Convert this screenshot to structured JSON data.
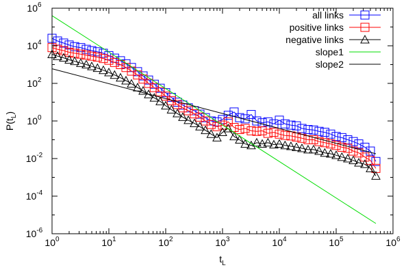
{
  "chart_data": {
    "type": "scatter",
    "title": "",
    "xlabel": {
      "base": "t",
      "sub": "L"
    },
    "ylabel": {
      "base": "P(t",
      "sub": "L",
      "tail": ")"
    },
    "x_scale": "log",
    "y_scale": "log",
    "xlim": [
      1,
      1000000
    ],
    "ylim": [
      1e-06,
      1000000
    ],
    "x_ticks": [
      {
        "base": "10",
        "exp": "0",
        "value": 1
      },
      {
        "base": "10",
        "exp": "1",
        "value": 10
      },
      {
        "base": "10",
        "exp": "2",
        "value": 100
      },
      {
        "base": "10",
        "exp": "3",
        "value": 1000
      },
      {
        "base": "10",
        "exp": "4",
        "value": 10000
      },
      {
        "base": "10",
        "exp": "5",
        "value": 100000
      },
      {
        "base": "10",
        "exp": "6",
        "value": 1000000
      }
    ],
    "y_ticks": [
      {
        "base": "10",
        "exp": "-6",
        "value": 1e-06
      },
      {
        "base": "10",
        "exp": "-4",
        "value": 0.0001
      },
      {
        "base": "10",
        "exp": "-2",
        "value": 0.01
      },
      {
        "base": "10",
        "exp": "0",
        "value": 1
      },
      {
        "base": "10",
        "exp": "2",
        "value": 100
      },
      {
        "base": "10",
        "exp": "4",
        "value": 10000
      },
      {
        "base": "10",
        "exp": "6",
        "value": 1000000
      }
    ],
    "legend_position": "top-right",
    "grid": false,
    "series": [
      {
        "name": "all links",
        "marker": "square",
        "color": "#0000ff",
        "points": [
          [
            1,
            25000
          ],
          [
            1.25,
            18000
          ],
          [
            1.6,
            14000
          ],
          [
            2,
            11000
          ],
          [
            2.5,
            9000
          ],
          [
            3.2,
            8000
          ],
          [
            4,
            6500
          ],
          [
            5,
            5500
          ],
          [
            6.3,
            4800
          ],
          [
            8,
            4000
          ],
          [
            10,
            3000
          ],
          [
            12.6,
            2200
          ],
          [
            16,
            1600
          ],
          [
            20,
            1100
          ],
          [
            25,
            700
          ],
          [
            32,
            420
          ],
          [
            40,
            250
          ],
          [
            50,
            150
          ],
          [
            63,
            90
          ],
          [
            80,
            55
          ],
          [
            100,
            32
          ],
          [
            126,
            18
          ],
          [
            160,
            10
          ],
          [
            200,
            7
          ],
          [
            250,
            5
          ],
          [
            320,
            3.5
          ],
          [
            400,
            2.3
          ],
          [
            500,
            1.5
          ],
          [
            630,
            1.0
          ],
          [
            800,
            0.9
          ],
          [
            1000,
            1.2
          ],
          [
            1260,
            2.0
          ],
          [
            1600,
            3.0
          ],
          [
            2000,
            1.5
          ],
          [
            2500,
            1.3
          ],
          [
            3200,
            2.2
          ],
          [
            4000,
            1.0
          ],
          [
            5000,
            0.8
          ],
          [
            6300,
            0.9
          ],
          [
            8000,
            0.7
          ],
          [
            10000,
            1.1
          ],
          [
            12600,
            0.7
          ],
          [
            16000,
            0.6
          ],
          [
            20000,
            0.55
          ],
          [
            25000,
            0.4
          ],
          [
            32000,
            0.35
          ],
          [
            40000,
            0.33
          ],
          [
            50000,
            0.28
          ],
          [
            63000,
            0.25
          ],
          [
            80000,
            0.2
          ],
          [
            100000,
            0.15
          ],
          [
            126000,
            0.13
          ],
          [
            160000,
            0.1
          ],
          [
            200000,
            0.08
          ],
          [
            250000,
            0.06
          ],
          [
            320000,
            0.04
          ],
          [
            400000,
            0.025
          ],
          [
            500000,
            0.007
          ]
        ]
      },
      {
        "name": "positive links",
        "marker": "square",
        "color": "#ff0000",
        "points": [
          [
            1,
            8000
          ],
          [
            1.25,
            6500
          ],
          [
            1.6,
            5500
          ],
          [
            2,
            4500
          ],
          [
            2.5,
            4000
          ],
          [
            3.2,
            3600
          ],
          [
            4,
            3200
          ],
          [
            5,
            2800
          ],
          [
            6.3,
            2500
          ],
          [
            8,
            2100
          ],
          [
            10,
            1700
          ],
          [
            12.6,
            1300
          ],
          [
            16,
            1000
          ],
          [
            20,
            700
          ],
          [
            25,
            450
          ],
          [
            32,
            280
          ],
          [
            40,
            170
          ],
          [
            50,
            100
          ],
          [
            63,
            60
          ],
          [
            80,
            36
          ],
          [
            100,
            21
          ],
          [
            126,
            12
          ],
          [
            160,
            7.5
          ],
          [
            200,
            5
          ],
          [
            250,
            3.5
          ],
          [
            320,
            2.4
          ],
          [
            400,
            1.6
          ],
          [
            500,
            1.0
          ],
          [
            630,
            0.65
          ],
          [
            800,
            0.5
          ],
          [
            1000,
            0.6
          ],
          [
            1260,
            0.9
          ],
          [
            1600,
            0.45
          ],
          [
            2000,
            0.35
          ],
          [
            2500,
            0.4
          ],
          [
            3200,
            0.3
          ],
          [
            4000,
            0.28
          ],
          [
            5000,
            0.3
          ],
          [
            6300,
            0.22
          ],
          [
            8000,
            0.25
          ],
          [
            10000,
            0.2
          ],
          [
            12600,
            0.17
          ],
          [
            16000,
            0.16
          ],
          [
            20000,
            0.14
          ],
          [
            25000,
            0.12
          ],
          [
            32000,
            0.1
          ],
          [
            40000,
            0.1
          ],
          [
            50000,
            0.08
          ],
          [
            63000,
            0.07
          ],
          [
            80000,
            0.06
          ],
          [
            100000,
            0.05
          ],
          [
            126000,
            0.04
          ],
          [
            160000,
            0.035
          ],
          [
            200000,
            0.025
          ],
          [
            250000,
            0.02
          ],
          [
            320000,
            0.012
          ],
          [
            400000,
            0.008
          ],
          [
            500000,
            0.003
          ]
        ]
      },
      {
        "name": "negative links",
        "marker": "triangle",
        "color": "#000000",
        "points": [
          [
            1,
            3500
          ],
          [
            1.25,
            2800
          ],
          [
            1.6,
            2300
          ],
          [
            2,
            1800
          ],
          [
            2.5,
            1500
          ],
          [
            3.2,
            1200
          ],
          [
            4,
            1000
          ],
          [
            5,
            800
          ],
          [
            6.3,
            650
          ],
          [
            8,
            500
          ],
          [
            10,
            380
          ],
          [
            12.6,
            280
          ],
          [
            16,
            200
          ],
          [
            20,
            140
          ],
          [
            25,
            95
          ],
          [
            32,
            60
          ],
          [
            40,
            40
          ],
          [
            50,
            26
          ],
          [
            63,
            17
          ],
          [
            80,
            11
          ],
          [
            100,
            6.5
          ],
          [
            126,
            4
          ],
          [
            160,
            2.5
          ],
          [
            200,
            1.6
          ],
          [
            250,
            1.1
          ],
          [
            320,
            0.75
          ],
          [
            400,
            0.5
          ],
          [
            500,
            0.32
          ],
          [
            630,
            0.2
          ],
          [
            800,
            0.13
          ],
          [
            1000,
            0.25
          ],
          [
            1260,
            0.4
          ],
          [
            1600,
            0.15
          ],
          [
            2000,
            0.1
          ],
          [
            2500,
            0.06
          ],
          [
            3200,
            0.05
          ],
          [
            4000,
            0.07
          ],
          [
            5000,
            0.06
          ],
          [
            6300,
            0.07
          ],
          [
            8000,
            0.055
          ],
          [
            10000,
            0.06
          ],
          [
            12600,
            0.05
          ],
          [
            16000,
            0.045
          ],
          [
            20000,
            0.04
          ],
          [
            25000,
            0.035
          ],
          [
            32000,
            0.03
          ],
          [
            40000,
            0.03
          ],
          [
            50000,
            0.025
          ],
          [
            63000,
            0.02
          ],
          [
            80000,
            0.018
          ],
          [
            100000,
            0.015
          ],
          [
            126000,
            0.012
          ],
          [
            160000,
            0.01
          ],
          [
            200000,
            0.008
          ],
          [
            250000,
            0.006
          ],
          [
            320000,
            0.005
          ],
          [
            400000,
            0.003
          ],
          [
            500000,
            0.0012
          ]
        ]
      },
      {
        "name": "slope1",
        "marker": "line",
        "color": "#00dd00",
        "points": [
          [
            1,
            400000
          ],
          [
            500000,
            3.5e-06
          ]
        ]
      },
      {
        "name": "slope2",
        "marker": "line",
        "color": "#000000",
        "points": [
          [
            1,
            600
          ],
          [
            500000,
            0.018
          ]
        ]
      }
    ]
  }
}
